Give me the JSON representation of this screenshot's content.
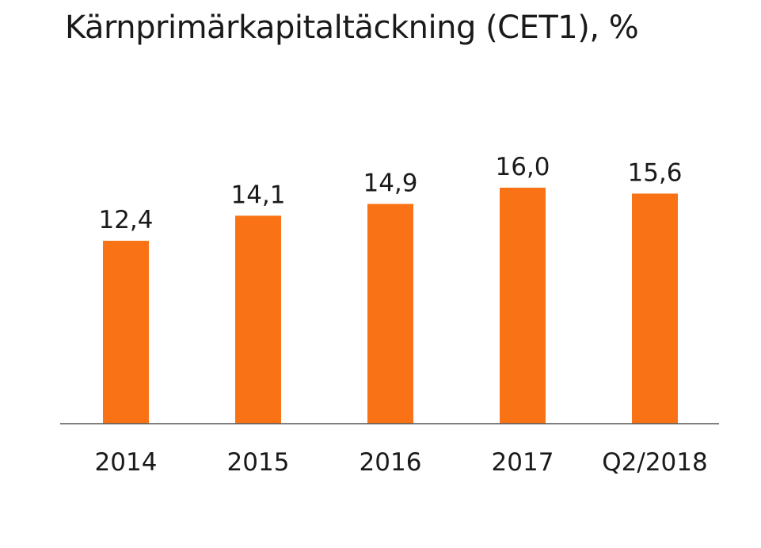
{
  "chart_data": {
    "type": "bar",
    "title": "Kärnprimärkapitaltäckning (CET1), %",
    "categories": [
      "2014",
      "2015",
      "2016",
      "2017",
      "Q2/2018"
    ],
    "values": [
      12.4,
      14.1,
      14.9,
      16.0,
      15.6
    ],
    "value_labels": [
      "12,4",
      "14,1",
      "14,9",
      "16,0",
      "15,6"
    ],
    "xlabel": "",
    "ylabel": "",
    "ylim": [
      0,
      16.0
    ],
    "grid": false,
    "legend": "none",
    "bar_color": "#f97316",
    "axis_color": "#555555"
  }
}
